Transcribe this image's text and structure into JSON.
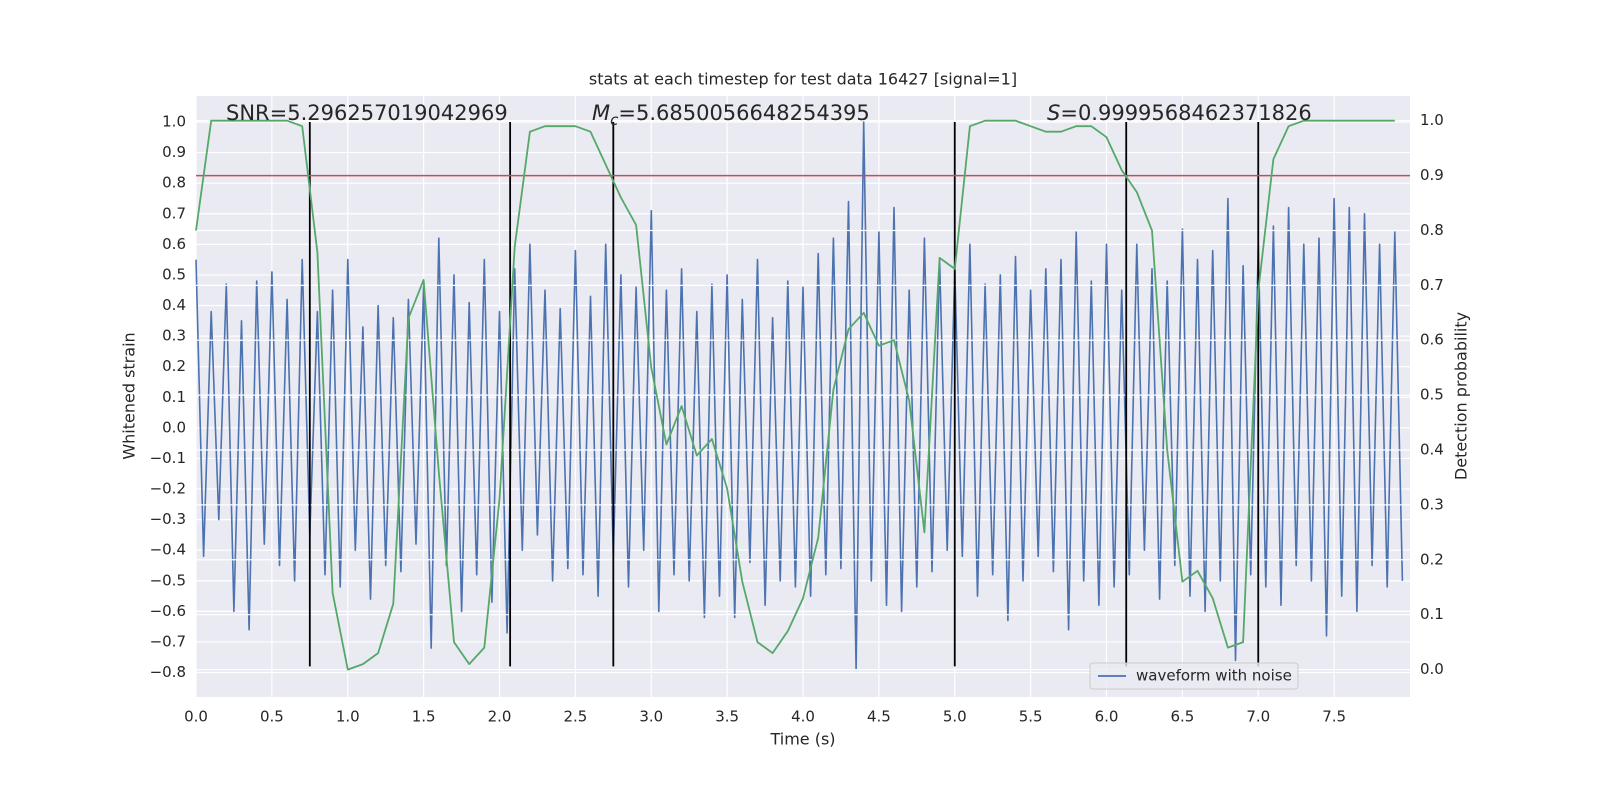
{
  "chart_data": {
    "type": "line",
    "title": "stats at each timestep for test data 16427 [signal=1]",
    "xlabel": "Time (s)",
    "ylabel": "Whitened strain",
    "y2label": "Detection probability",
    "annotations": [
      {
        "text": "SNR=5.296257019042969"
      },
      {
        "symbol": "M",
        "subscript": "c",
        "text": "=5.6850056648254395"
      },
      {
        "symbol": "S",
        "text": "=0.9999568462371826"
      }
    ],
    "xlim": [
      0,
      8.0
    ],
    "ylim": [
      -0.88,
      1.085
    ],
    "y2lim": [
      -0.05,
      1.045
    ],
    "xticks": [
      {
        "value": 0,
        "label": "0.0"
      },
      0.5,
      {
        "value": 1,
        "label": "1.0"
      },
      1.5,
      {
        "value": 2,
        "label": "2.0"
      },
      2.5,
      {
        "value": 3,
        "label": "3.0"
      },
      3.5,
      {
        "value": 4,
        "label": "4.0"
      },
      4.5,
      {
        "value": 5,
        "label": "5.0"
      },
      5.5,
      {
        "value": 6,
        "label": "6.0"
      },
      6.5,
      {
        "value": 7,
        "label": "7.0"
      },
      7.5
    ],
    "yticks": [
      {
        "value": -0.8,
        "label": "−0.8"
      },
      {
        "value": -0.7,
        "label": "−0.7"
      },
      {
        "value": -0.6,
        "label": "−0.6"
      },
      {
        "value": -0.5,
        "label": "−0.5"
      },
      {
        "value": -0.4,
        "label": "−0.4"
      },
      {
        "value": -0.3,
        "label": "−0.3"
      },
      {
        "value": -0.2,
        "label": "−0.2"
      },
      {
        "value": -0.1,
        "label": "−0.1"
      },
      {
        "value": 0,
        "label": "0.0"
      },
      0.1,
      0.2,
      0.3,
      0.4,
      0.5,
      0.6,
      0.7,
      0.8,
      0.9,
      {
        "value": 1,
        "label": "1.0"
      }
    ],
    "y2ticks": [
      {
        "value": 0,
        "label": "0.0"
      },
      0.1,
      0.2,
      0.3,
      0.4,
      0.5,
      0.6,
      0.7,
      0.8,
      0.9,
      {
        "value": 1,
        "label": "1.0"
      }
    ],
    "grid": true,
    "legend": "lower right",
    "series": [
      {
        "name": "waveform with noise",
        "color": "#4c72b0",
        "x": [
          0,
          0.05,
          0.1,
          0.15,
          0.2,
          0.25,
          0.3,
          0.35,
          0.4,
          0.45,
          0.5,
          0.55,
          0.6,
          0.65,
          0.7,
          0.75,
          0.8,
          0.85,
          0.9,
          0.95,
          1,
          1.05,
          1.1,
          1.15,
          1.2,
          1.25,
          1.3,
          1.35,
          1.4,
          1.45,
          1.5,
          1.55,
          1.6,
          1.65,
          1.7,
          1.75,
          1.8,
          1.85,
          1.9,
          1.95,
          2,
          2.05,
          2.1,
          2.15,
          2.2,
          2.25,
          2.3,
          2.35,
          2.4,
          2.45,
          2.5,
          2.55,
          2.6,
          2.65,
          2.7,
          2.75,
          2.8,
          2.85,
          2.9,
          2.95,
          3,
          3.05,
          3.1,
          3.15,
          3.2,
          3.25,
          3.3,
          3.35,
          3.4,
          3.45,
          3.5,
          3.55,
          3.6,
          3.65,
          3.7,
          3.75,
          3.8,
          3.85,
          3.9,
          3.95,
          4,
          4.05,
          4.1,
          4.15,
          4.2,
          4.25,
          4.3,
          4.35,
          4.4,
          4.45,
          4.5,
          4.55,
          4.6,
          4.65,
          4.7,
          4.75,
          4.8,
          4.85,
          4.9,
          4.95,
          5,
          5.05,
          5.1,
          5.15,
          5.2,
          5.25,
          5.3,
          5.35,
          5.4,
          5.45,
          5.5,
          5.55,
          5.6,
          5.65,
          5.7,
          5.75,
          5.8,
          5.85,
          5.9,
          5.95,
          6,
          6.05,
          6.1,
          6.15,
          6.2,
          6.25,
          6.3,
          6.35,
          6.4,
          6.45,
          6.5,
          6.55,
          6.6,
          6.65,
          6.7,
          6.75,
          6.8,
          6.85,
          6.9,
          6.95,
          7,
          7.05,
          7.1,
          7.15,
          7.2,
          7.25,
          7.3,
          7.35,
          7.4,
          7.45,
          7.5,
          7.55,
          7.6,
          7.65,
          7.7,
          7.75,
          7.8,
          7.85,
          7.9,
          7.95
        ],
        "values": [
          0.55,
          -0.42,
          0.38,
          -0.3,
          0.47,
          -0.6,
          0.35,
          -0.66,
          0.48,
          -0.38,
          0.51,
          -0.45,
          0.42,
          -0.5,
          0.55,
          -0.35,
          0.38,
          -0.48,
          0.45,
          -0.52,
          0.55,
          -0.4,
          0.33,
          -0.56,
          0.4,
          -0.45,
          0.36,
          -0.47,
          0.42,
          -0.38,
          0.46,
          -0.72,
          0.62,
          -0.45,
          0.5,
          -0.6,
          0.41,
          -0.48,
          0.55,
          -0.57,
          0.38,
          -0.67,
          0.52,
          -0.4,
          0.6,
          -0.35,
          0.45,
          -0.5,
          0.39,
          -0.46,
          0.58,
          -0.48,
          0.43,
          -0.55,
          0.6,
          -0.42,
          0.5,
          -0.52,
          0.46,
          -0.4,
          0.71,
          -0.6,
          0.45,
          -0.48,
          0.52,
          -0.5,
          0.38,
          -0.62,
          0.47,
          -0.55,
          0.5,
          -0.62,
          0.42,
          -0.44,
          0.55,
          -0.58,
          0.36,
          -0.5,
          0.48,
          -0.52,
          0.46,
          -0.55,
          0.57,
          -0.48,
          0.62,
          -0.46,
          0.74,
          -0.79,
          1.0,
          -0.5,
          0.64,
          -0.58,
          0.72,
          -0.6,
          0.45,
          -0.52,
          0.62,
          -0.47,
          0.55,
          -0.4,
          0.52,
          -0.42,
          0.6,
          -0.55,
          0.47,
          -0.48,
          0.5,
          -0.63,
          0.56,
          -0.5,
          0.45,
          -0.42,
          0.52,
          -0.47,
          0.55,
          -0.66,
          0.64,
          -0.5,
          0.48,
          -0.58,
          0.6,
          -0.52,
          0.45,
          -0.48,
          0.6,
          -0.4,
          0.52,
          -0.56,
          0.48,
          -0.45,
          0.65,
          -0.55,
          0.55,
          -0.6,
          0.58,
          -0.5,
          0.75,
          -0.76,
          0.53,
          -0.48,
          0.6,
          -0.52,
          0.66,
          -0.58,
          0.72,
          -0.45,
          0.6,
          -0.5,
          0.62,
          -0.68,
          0.75,
          -0.55,
          0.72,
          -0.6,
          0.7,
          -0.45,
          0.6,
          -0.52,
          0.64,
          -0.5
        ]
      },
      {
        "color": "#55a868",
        "axis": "y2",
        "x": [
          0,
          0.1,
          0.2,
          0.3,
          0.4,
          0.5,
          0.6,
          0.7,
          0.8,
          0.9,
          1,
          1.1,
          1.2,
          1.3,
          1.4,
          1.5,
          1.6,
          1.7,
          1.8,
          1.9,
          2,
          2.1,
          2.2,
          2.3,
          2.4,
          2.5,
          2.6,
          2.7,
          2.8,
          2.9,
          3,
          3.1,
          3.2,
          3.3,
          3.4,
          3.5,
          3.6,
          3.7,
          3.8,
          3.9,
          4,
          4.1,
          4.2,
          4.3,
          4.4,
          4.5,
          4.6,
          4.7,
          4.8,
          4.9,
          5,
          5.1,
          5.2,
          5.3,
          5.4,
          5.5,
          5.6,
          5.7,
          5.8,
          5.9,
          6,
          6.1,
          6.2,
          6.3,
          6.4,
          6.5,
          6.6,
          6.7,
          6.8,
          6.9,
          7,
          7.1,
          7.2,
          7.3,
          7.4,
          7.5,
          7.6,
          7.7,
          7.8,
          7.9
        ],
        "values": [
          0.8,
          1.0,
          1.0,
          1.0,
          1.0,
          1.0,
          1.0,
          0.99,
          0.76,
          0.14,
          0.0,
          0.01,
          0.03,
          0.12,
          0.64,
          0.71,
          0.36,
          0.05,
          0.01,
          0.04,
          0.31,
          0.77,
          0.98,
          0.99,
          0.99,
          0.99,
          0.98,
          0.92,
          0.86,
          0.81,
          0.55,
          0.41,
          0.48,
          0.39,
          0.42,
          0.33,
          0.16,
          0.05,
          0.03,
          0.07,
          0.13,
          0.24,
          0.51,
          0.62,
          0.65,
          0.59,
          0.6,
          0.49,
          0.25,
          0.75,
          0.73,
          0.99,
          1.0,
          1.0,
          1.0,
          0.99,
          0.98,
          0.98,
          0.99,
          0.99,
          0.97,
          0.91,
          0.87,
          0.8,
          0.4,
          0.16,
          0.18,
          0.13,
          0.04,
          0.05,
          0.69,
          0.93,
          0.99,
          1.0,
          1.0,
          1.0,
          1.0,
          1.0,
          1.0,
          1.0
        ]
      }
    ],
    "hline": {
      "y2": 0.9,
      "color": "#c44e52"
    },
    "vlines": {
      "x": [
        0.75,
        2.07,
        2.75,
        5.0,
        6.13,
        7.0
      ],
      "ymin": -0.78,
      "ymax": 1.0,
      "color": "#000000"
    }
  }
}
